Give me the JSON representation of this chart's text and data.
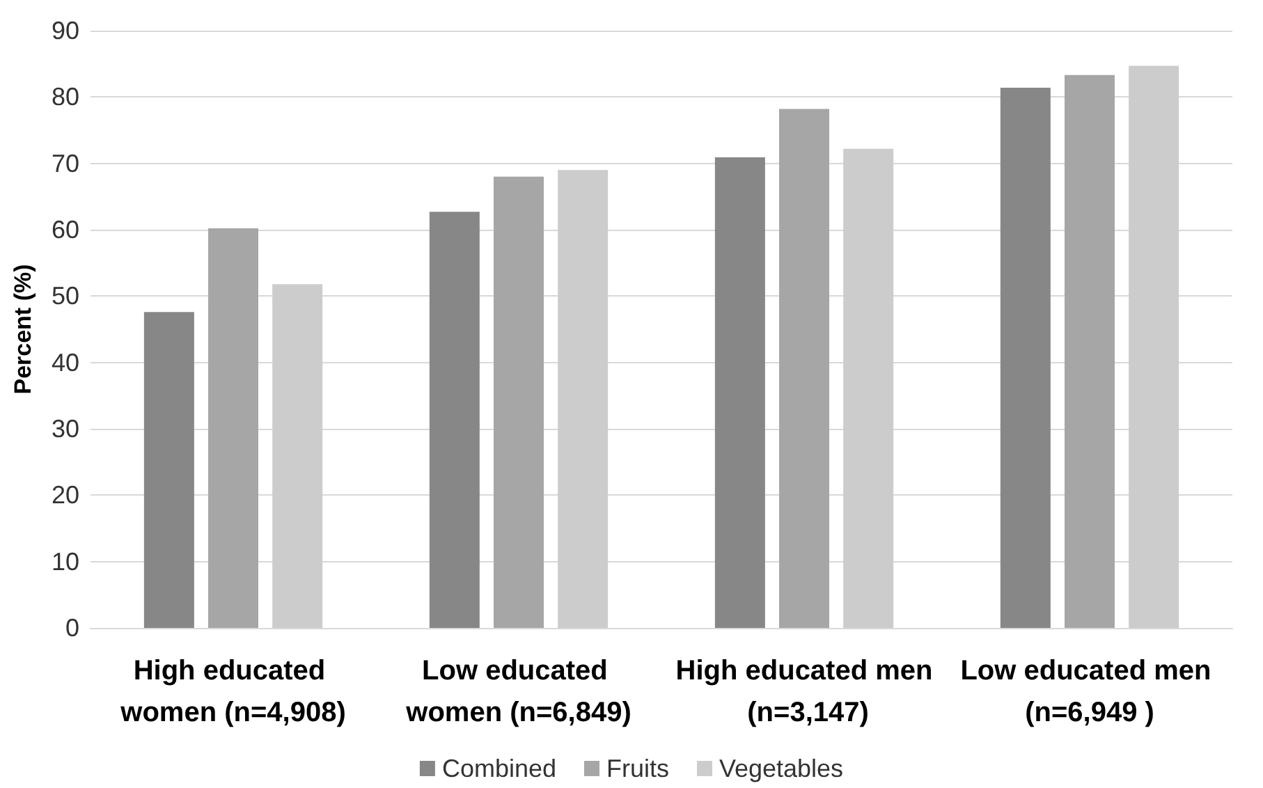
{
  "chart_data": {
    "type": "bar",
    "ylabel": "Percent (%)",
    "categories": [
      "High educated women (n=4,908)",
      "Low educated women (n=6,849)",
      "High educated men (n=3,147)",
      "Low educated men (n=6,949 )"
    ],
    "series": [
      {
        "name": "Combined",
        "color": "#878787",
        "values": [
          47.6,
          62.7,
          70.9,
          81.4
        ]
      },
      {
        "name": "Fruits",
        "color": "#a6a6a6",
        "values": [
          60.2,
          68.0,
          78.2,
          83.3
        ]
      },
      {
        "name": "Vegetables",
        "color": "#cccccc",
        "values": [
          51.8,
          69.0,
          72.2,
          84.7
        ]
      }
    ],
    "ylim": [
      0,
      90
    ],
    "yticks": [
      0,
      10,
      20,
      30,
      40,
      50,
      60,
      70,
      80,
      90
    ],
    "grid": "y",
    "legend": "bottom"
  }
}
